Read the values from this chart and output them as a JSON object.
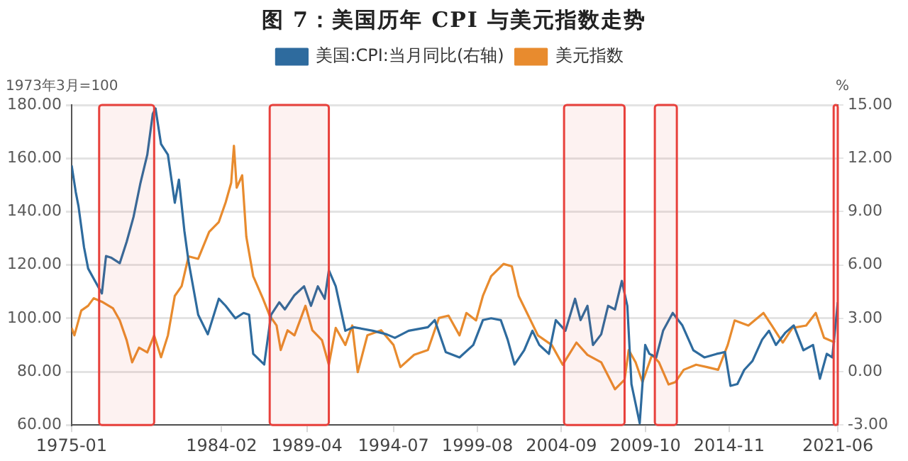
{
  "chart_data": {
    "type": "line",
    "title": "图 7：美国历年 CPI 与美元指数走势",
    "ylabel": "1973年3月=100",
    "y2label": "%",
    "legend": "top",
    "grid": "y",
    "marker": "none",
    "line_style": "solid",
    "xlim": [
      "1975-01",
      "2021-06"
    ],
    "xticks": [
      "1975-01",
      "1984-02",
      "1989-04",
      "1994-07",
      "1999-08",
      "2004-09",
      "2009-10",
      "2014-11",
      "2021-06"
    ],
    "ylim": [
      60,
      180
    ],
    "yticks": [
      {
        "value": 60,
        "label": "60.00"
      },
      {
        "value": 80,
        "label": "80.00"
      },
      {
        "value": 100,
        "label": "100.00"
      },
      {
        "value": 120,
        "label": "120.00"
      },
      {
        "value": 140,
        "label": "140.00"
      },
      {
        "value": 160,
        "label": "160.00"
      },
      {
        "value": 180,
        "label": "180.00"
      }
    ],
    "y2lim": [
      -3,
      15
    ],
    "y2ticks": [
      {
        "value": -3,
        "label": "-3.00"
      },
      {
        "value": 0,
        "label": "0.00"
      },
      {
        "value": 3,
        "label": "3.00"
      },
      {
        "value": 6,
        "label": "6.00"
      },
      {
        "value": 9,
        "label": "9.00"
      },
      {
        "value": 12,
        "label": "12.00"
      },
      {
        "value": 15,
        "label": "15.00"
      }
    ],
    "series": [
      {
        "name": "美国:CPI:当月同比(右轴)",
        "color": "#2e6b9e",
        "axis": "y2",
        "x": [
          "1975-01",
          "1975-04",
          "1975-06",
          "1975-10",
          "1976-01",
          "1976-06",
          "1976-11",
          "1977-02",
          "1977-06",
          "1977-12",
          "1978-05",
          "1978-10",
          "1979-03",
          "1979-08",
          "1979-12",
          "1980-02",
          "1980-06",
          "1980-11",
          "1981-04",
          "1981-07",
          "1981-11",
          "1982-02",
          "1982-09",
          "1983-04",
          "1983-12",
          "1984-05",
          "1984-12",
          "1985-06",
          "1985-10",
          "1986-01",
          "1986-09",
          "1987-02",
          "1987-08",
          "1987-12",
          "1988-07",
          "1989-02",
          "1989-07",
          "1989-12",
          "1990-05",
          "1990-08",
          "1991-01",
          "1991-08",
          "1992-02",
          "1993-04",
          "1994-02",
          "1994-08",
          "1995-06",
          "1996-08",
          "1997-01",
          "1997-09",
          "1998-07",
          "1999-05",
          "1999-12",
          "2000-06",
          "2001-01",
          "2001-06",
          "2001-11",
          "2002-06",
          "2002-12",
          "2003-05",
          "2003-12",
          "2004-05",
          "2004-12",
          "2005-07",
          "2005-11",
          "2006-04",
          "2006-08",
          "2007-02",
          "2007-07",
          "2007-12",
          "2008-05",
          "2008-09",
          "2008-12",
          "2009-06",
          "2009-10",
          "2010-01",
          "2010-06",
          "2010-11",
          "2011-06",
          "2012-01",
          "2012-09",
          "2013-05",
          "2014-02",
          "2014-08",
          "2014-12",
          "2015-05",
          "2015-10",
          "2016-04",
          "2016-11",
          "2017-04",
          "2017-09",
          "2018-04",
          "2018-10",
          "2019-05",
          "2019-12",
          "2020-05",
          "2020-10",
          "2021-02",
          "2021-06"
        ],
        "values": [
          11.6,
          10.1,
          9.3,
          7.0,
          5.8,
          5.1,
          4.4,
          6.5,
          6.4,
          6.1,
          7.3,
          8.7,
          10.6,
          12.2,
          14.5,
          14.8,
          12.8,
          12.2,
          9.5,
          10.8,
          7.9,
          6.2,
          3.2,
          2.1,
          4.1,
          3.7,
          3.0,
          3.3,
          3.2,
          1.0,
          0.4,
          3.2,
          3.9,
          3.5,
          4.3,
          4.8,
          3.7,
          4.8,
          4.1,
          5.7,
          4.8,
          2.3,
          2.5,
          2.3,
          2.1,
          1.9,
          2.3,
          2.5,
          2.9,
          1.1,
          0.8,
          1.5,
          2.9,
          3.0,
          2.9,
          1.8,
          0.4,
          1.2,
          2.3,
          1.5,
          1.0,
          2.9,
          2.3,
          4.1,
          2.9,
          3.7,
          1.5,
          2.1,
          3.7,
          3.5,
          5.1,
          3.7,
          -0.7,
          -2.9,
          1.5,
          1.0,
          0.8,
          2.3,
          3.3,
          2.6,
          1.2,
          0.8,
          1.0,
          1.1,
          -0.8,
          -0.7,
          0.1,
          0.6,
          1.8,
          2.3,
          1.5,
          2.2,
          2.6,
          1.2,
          1.5,
          -0.4,
          1.0,
          0.8,
          3.9
        ]
      },
      {
        "name": "美元指数",
        "color": "#e88b2e",
        "x": [
          "1975-01",
          "1975-03",
          "1975-08",
          "1976-01",
          "1976-05",
          "1976-11",
          "1977-07",
          "1977-12",
          "1978-05",
          "1978-09",
          "1979-02",
          "1979-08",
          "1980-01",
          "1980-06",
          "1980-11",
          "1981-04",
          "1981-09",
          "1982-02",
          "1982-09",
          "1983-05",
          "1983-12",
          "1984-05",
          "1984-09",
          "1984-11",
          "1985-01",
          "1985-05",
          "1985-08",
          "1986-01",
          "1986-08",
          "1987-01",
          "1987-06",
          "1987-09",
          "1988-02",
          "1988-07",
          "1989-03",
          "1989-08",
          "1990-03",
          "1990-08",
          "1991-01",
          "1991-08",
          "1992-01",
          "1992-05",
          "1992-12",
          "1993-10",
          "1994-07",
          "1994-12",
          "1995-10",
          "1996-08",
          "1997-04",
          "1997-11",
          "1998-07",
          "1998-12",
          "1999-07",
          "1999-12",
          "2000-06",
          "2001-03",
          "2001-09",
          "2002-02",
          "2002-09",
          "2003-04",
          "2004-02",
          "2004-10",
          "2005-08",
          "2006-04",
          "2007-02",
          "2007-12",
          "2008-07",
          "2008-10",
          "2009-03",
          "2009-08",
          "2010-03",
          "2010-08",
          "2011-03",
          "2011-08",
          "2012-02",
          "2012-11",
          "2013-07",
          "2014-03",
          "2014-10",
          "2015-03",
          "2016-01",
          "2016-12",
          "2017-06",
          "2018-02",
          "2018-09",
          "2019-07",
          "2020-02",
          "2020-08",
          "2021-04"
        ],
        "values": [
          96.4,
          93.6,
          102.9,
          104.7,
          107.5,
          106.2,
          103.8,
          99.2,
          91.8,
          83.5,
          89.0,
          87.2,
          93.6,
          85.4,
          93.6,
          108.4,
          112.1,
          123.2,
          122.3,
          132.4,
          136.1,
          143.5,
          150.8,
          164.7,
          149.0,
          153.6,
          130.6,
          115.8,
          107.5,
          101.0,
          97.3,
          88.1,
          95.5,
          93.6,
          104.7,
          95.5,
          91.8,
          82.6,
          96.4,
          90.0,
          97.3,
          79.8,
          93.6,
          95.5,
          90.0,
          81.7,
          86.3,
          88.1,
          100.1,
          101.0,
          93.6,
          102.0,
          99.2,
          108.4,
          115.8,
          120.4,
          119.5,
          108.4,
          101.0,
          93.6,
          90.0,
          82.6,
          90.9,
          86.3,
          83.5,
          73.4,
          77.0,
          88.1,
          83.5,
          76.1,
          86.3,
          83.5,
          75.2,
          76.1,
          80.7,
          82.6,
          81.7,
          80.7,
          90.0,
          99.2,
          97.3,
          102.0,
          97.3,
          90.9,
          96.4,
          97.3,
          102.0,
          92.7,
          90.9
        ]
      }
    ],
    "bands": [
      {
        "axis": "x",
        "from": "1976-09",
        "to": "1980-01",
        "color": "#e8413c"
      },
      {
        "axis": "x",
        "from": "1987-01",
        "to": "1990-08",
        "color": "#e8413c"
      },
      {
        "axis": "x",
        "from": "2004-11",
        "to": "2008-07",
        "color": "#e8413c"
      },
      {
        "axis": "x",
        "from": "2010-05",
        "to": "2011-09",
        "color": "#e8413c"
      },
      {
        "axis": "x",
        "from": "2021-03",
        "to": "2021-06",
        "color": "#e8413c"
      }
    ]
  }
}
